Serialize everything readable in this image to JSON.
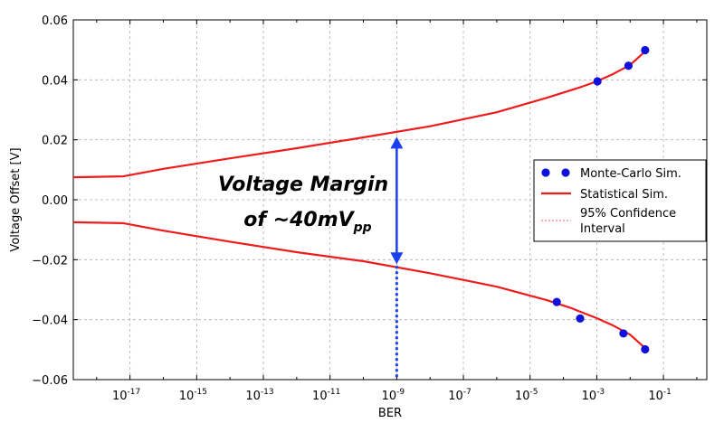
{
  "chart_data": {
    "type": "line",
    "xlabel": "BER",
    "ylabel": "Voltage Offset [V]",
    "xscale": "log",
    "xlim_exponent": [
      -18.7,
      0.3
    ],
    "ylim": [
      -0.06,
      0.06
    ],
    "yticks": [
      -0.06,
      -0.04,
      -0.02,
      0.0,
      0.02,
      0.04,
      0.06
    ],
    "ytick_labels": [
      "−0.06",
      "−0.04",
      "−0.02",
      "0.00",
      "0.02",
      "0.04",
      "0.06"
    ],
    "xtick_exponents": [
      -17,
      -15,
      -13,
      -11,
      -9,
      -7,
      -5,
      -3,
      -1
    ],
    "xtick_base": "10",
    "grid": true,
    "legend_position": "right",
    "legend": {
      "mc": "Monte-Carlo Sim.",
      "stat": "Statistical Sim.",
      "ci_line1": "95% Confidence",
      "ci_line2": "Interval"
    },
    "annotation": {
      "line1": "Voltage Margin",
      "line2_prefix": "of ~40mV",
      "line2_sub": "pp",
      "at_ber_exponent": -9,
      "from": -0.0215,
      "to": 0.021
    },
    "series": [
      {
        "name": "Statistical Sim.",
        "color": "#ee1c1c",
        "x_exponent": [
          -18.7,
          -17.2,
          -16.0,
          -14.0,
          -12.0,
          -10.0,
          -8.0,
          -6.0,
          -4.5,
          -3.5,
          -3.0,
          -2.5,
          -2.0,
          -1.5
        ],
        "y": [
          0.0075,
          0.0078,
          0.0103,
          0.0138,
          0.0172,
          0.0208,
          0.0245,
          0.0292,
          0.034,
          0.0375,
          0.0395,
          0.042,
          0.045,
          0.05
        ]
      },
      {
        "name": "Statistical Sim.",
        "color": "#ee1c1c",
        "x_exponent": [
          -18.7,
          -17.2,
          -16.0,
          -14.0,
          -12.0,
          -10.0,
          -8.0,
          -6.0,
          -4.5,
          -3.8,
          -3.0,
          -2.5,
          -2.0,
          -1.5
        ],
        "y": [
          -0.0075,
          -0.0078,
          -0.0103,
          -0.014,
          -0.0175,
          -0.0205,
          -0.0245,
          -0.029,
          -0.0335,
          -0.036,
          -0.0395,
          -0.042,
          -0.045,
          -0.05
        ]
      },
      {
        "name": "Monte-Carlo Sim.",
        "color": "#1010dd",
        "x_exponent": [
          -2.98,
          -2.05,
          -1.55,
          -4.2,
          -3.5,
          -2.2,
          -1.55
        ],
        "y": [
          0.0395,
          0.0447,
          0.0499,
          -0.0341,
          -0.0396,
          -0.0446,
          -0.0499
        ]
      }
    ]
  }
}
